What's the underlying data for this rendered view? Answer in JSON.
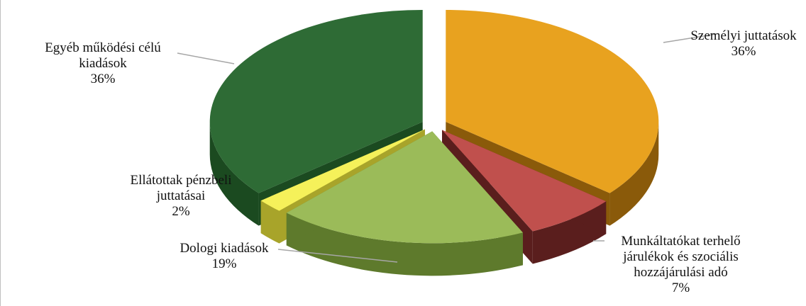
{
  "chart_data": {
    "type": "pie",
    "variant": "3d-exploded",
    "title": "",
    "legend": "none",
    "slices": [
      {
        "label_lines": [
          "Személyi juttatások"
        ],
        "value": 36,
        "pct_label": "36%",
        "color": "#E8A21F",
        "side": "#8A5A0A"
      },
      {
        "label_lines": [
          "Munkáltatókat terhelő",
          "járulékok és szociális",
          "hozzájárulási adó"
        ],
        "value": 7,
        "pct_label": "7%",
        "color": "#C0504D",
        "side": "#5A1E1D"
      },
      {
        "label_lines": [
          "Dologi kiadások"
        ],
        "value": 19,
        "pct_label": "19%",
        "color": "#9BBB59",
        "side": "#5E7A2C"
      },
      {
        "label_lines": [
          "Ellátottak pénzbeli",
          "juttatásai"
        ],
        "value": 2,
        "pct_label": "2%",
        "color": "#F5F15A",
        "side": "#A8A42A"
      },
      {
        "label_lines": [
          "Egyéb működési célú",
          "kiadások"
        ],
        "value": 36,
        "pct_label": "36%",
        "color": "#2E6B35",
        "side": "#1B4A20"
      }
    ]
  }
}
